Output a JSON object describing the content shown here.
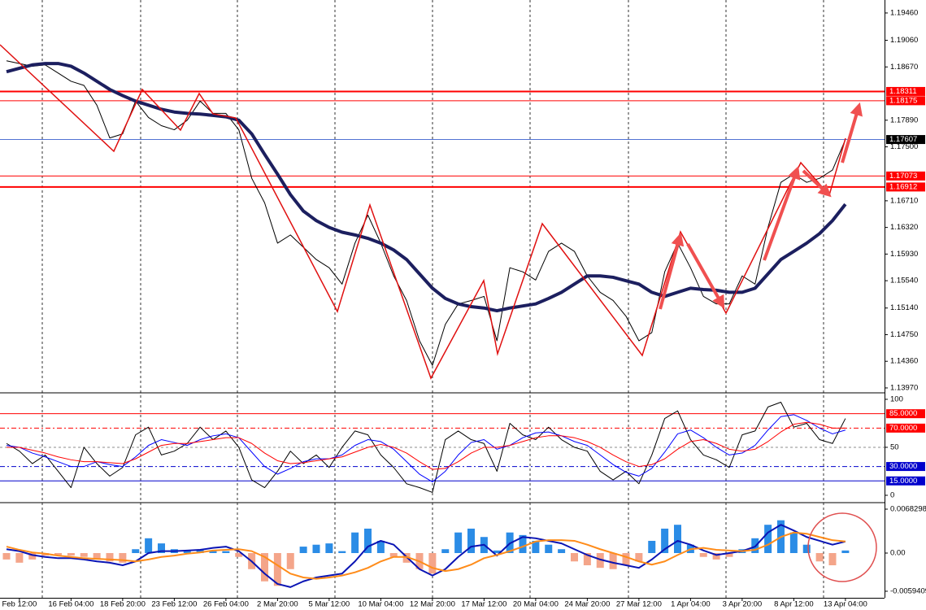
{
  "chart_data": [
    {
      "type": "line",
      "ylim": [
        1.1391,
        1.1965
      ],
      "yticks": [
        {
          "value": 1.1946,
          "label": "1.19460"
        },
        {
          "value": 1.1906,
          "label": "1.19060"
        },
        {
          "value": 1.1867,
          "label": "1.18670"
        },
        {
          "value": 1.1789,
          "label": "1.17890"
        },
        {
          "value": 1.175,
          "label": "1.17500"
        },
        {
          "value": 1.1671,
          "label": "1.16710"
        },
        {
          "value": 1.1632,
          "label": "1.16320"
        },
        {
          "value": 1.1593,
          "label": "1.15930"
        },
        {
          "value": 1.1554,
          "label": "1.15540"
        },
        {
          "value": 1.1514,
          "label": "1.15140"
        },
        {
          "value": 1.1475,
          "label": "1.14750"
        },
        {
          "value": 1.1436,
          "label": "1.14360"
        },
        {
          "value": 1.1397,
          "label": "1.13970"
        }
      ],
      "levels": [
        {
          "value": 1.18311,
          "color": "#ff0000",
          "width": 2,
          "tag": true
        },
        {
          "value": 1.18175,
          "color": "#ff0000",
          "width": 1,
          "tag": true
        },
        {
          "value": 1.17073,
          "color": "#ff0000",
          "width": 1,
          "tag": true
        },
        {
          "value": 1.16912,
          "color": "#ff0000",
          "width": 2,
          "tag": true
        }
      ],
      "current": {
        "value": 1.17607,
        "color": "#3a5fcd",
        "label_color": "#000000"
      },
      "series": [
        {
          "color": "#000000",
          "width": 1,
          "values": [
            1.1876,
            1.1872,
            1.1868,
            1.187,
            1.1858,
            1.1846,
            1.184,
            1.1811,
            1.1763,
            1.1769,
            1.1817,
            1.1793,
            1.1781,
            1.1775,
            1.1789,
            1.1817,
            1.1799,
            1.1799,
            1.1775,
            1.1704,
            1.1668,
            1.1609,
            1.1621,
            1.1603,
            1.1585,
            1.1573,
            1.1549,
            1.1609,
            1.165,
            1.1609,
            1.1561,
            1.1525,
            1.1466,
            1.143,
            1.149,
            1.152,
            1.1525,
            1.1531,
            1.1466,
            1.1573,
            1.1567,
            1.1555,
            1.1597,
            1.1609,
            1.1597,
            1.1561,
            1.1537,
            1.1525,
            1.1502,
            1.1466,
            1.1478,
            1.1567,
            1.1609,
            1.1573,
            1.1531,
            1.152,
            1.152,
            1.1561,
            1.1549,
            1.1632,
            1.1698,
            1.171,
            1.1698,
            1.1704,
            1.1716,
            1.17607
          ]
        },
        {
          "color": "#1c1f5f",
          "width": 4,
          "values": [
            1.186,
            1.1865,
            1.187,
            1.1872,
            1.1872,
            1.1868,
            1.1858,
            1.1846,
            1.1834,
            1.1825,
            1.1817,
            1.1811,
            1.1805,
            1.1801,
            1.1799,
            1.1798,
            1.1796,
            1.1794,
            1.1789,
            1.1769,
            1.1739,
            1.171,
            1.168,
            1.1656,
            1.1642,
            1.1632,
            1.1625,
            1.1621,
            1.1616,
            1.1609,
            1.1599,
            1.1585,
            1.1564,
            1.1543,
            1.1528,
            1.152,
            1.1516,
            1.1514,
            1.151,
            1.1514,
            1.1517,
            1.152,
            1.1528,
            1.1537,
            1.1549,
            1.1561,
            1.1561,
            1.1559,
            1.1554,
            1.1549,
            1.1537,
            1.1531,
            1.1537,
            1.1543,
            1.1541,
            1.154,
            1.1537,
            1.1537,
            1.1543,
            1.1564,
            1.1585,
            1.1597,
            1.1609,
            1.1623,
            1.1642,
            1.1666
          ]
        }
      ]
    },
    {
      "type": "line",
      "ylim": [
        -6.8,
        105.9
      ],
      "yticks": [
        100,
        50,
        0
      ],
      "levels": [
        {
          "value": 85,
          "label": "85.0000",
          "color": "#ff0000",
          "width": 1
        },
        {
          "value": 70,
          "label": "70.0000",
          "color": "#ff0000",
          "width": 1,
          "dash": "6 3 2 3"
        },
        {
          "value": 50,
          "color": "#8c8c8c",
          "width": 1,
          "dash": "3 3",
          "tag": false
        },
        {
          "value": 30,
          "label": "30.0000",
          "color": "#0000cc",
          "width": 1,
          "dash": "6 3 2 3"
        },
        {
          "value": 15,
          "label": "15.0000",
          "color": "#0000cc",
          "width": 1
        }
      ],
      "series": [
        {
          "color": "#000000",
          "width": 1,
          "values": [
            54,
            46,
            33,
            42,
            25,
            8,
            50,
            33,
            20,
            29,
            63,
            71,
            42,
            46,
            54,
            71,
            58,
            67,
            50,
            16,
            8,
            25,
            46,
            33,
            42,
            29,
            50,
            67,
            63,
            42,
            29,
            12,
            8,
            3,
            58,
            67,
            58,
            54,
            25,
            75,
            63,
            58,
            71,
            58,
            50,
            46,
            25,
            16,
            25,
            12,
            42,
            80,
            88,
            58,
            42,
            37,
            29,
            63,
            67,
            92,
            97,
            71,
            75,
            58,
            54,
            80
          ]
        },
        {
          "color": "#0000ff",
          "width": 1,
          "values": [
            52,
            50,
            44,
            40,
            35,
            30,
            30,
            35,
            32,
            30,
            40,
            52,
            58,
            55,
            52,
            58,
            62,
            64,
            60,
            45,
            30,
            22,
            28,
            35,
            38,
            38,
            42,
            52,
            58,
            56,
            48,
            35,
            22,
            14,
            25,
            42,
            55,
            58,
            48,
            52,
            60,
            65,
            66,
            62,
            56,
            52,
            42,
            32,
            24,
            20,
            28,
            45,
            64,
            68,
            60,
            50,
            42,
            44,
            52,
            68,
            82,
            84,
            78,
            70,
            64,
            68
          ]
        },
        {
          "color": "#ff0000",
          "width": 1,
          "values": [
            50,
            50,
            47,
            44,
            40,
            37,
            35,
            35,
            34,
            33,
            38,
            45,
            52,
            54,
            54,
            56,
            58,
            60,
            60,
            54,
            44,
            36,
            33,
            34,
            36,
            38,
            40,
            45,
            50,
            53,
            50,
            44,
            35,
            27,
            28,
            35,
            44,
            50,
            50,
            52,
            56,
            60,
            62,
            62,
            60,
            56,
            50,
            42,
            35,
            30,
            32,
            38,
            48,
            56,
            58,
            54,
            48,
            46,
            48,
            56,
            66,
            74,
            76,
            74,
            70,
            70
          ]
        }
      ]
    },
    {
      "type": "line",
      "ylim": [
        -0.00696,
        0.00759
      ],
      "yticks": [
        0.0068298,
        {
          "value": 0,
          "label": "0.00"
        },
        -0.0059409
      ],
      "categories": [
        null,
        "Feb 12:00",
        null,
        null,
        null,
        "16 Feb 04:00",
        null,
        null,
        null,
        "18 Feb 20:00",
        null,
        null,
        null,
        "23 Feb 12:00",
        null,
        null,
        null,
        "26 Feb 04:00",
        null,
        null,
        null,
        "2 Mar 20:00",
        null,
        null,
        null,
        "5 Mar 12:00",
        null,
        null,
        null,
        "10 Mar 04:00",
        null,
        null,
        null,
        "12 Mar 20:00",
        null,
        null,
        null,
        "17 Mar 12:00",
        null,
        null,
        null,
        "20 Mar 04:00",
        null,
        null,
        null,
        "24 Mar 20:00",
        null,
        null,
        null,
        "27 Mar 12:00",
        null,
        null,
        null,
        "1 Apr 04:00",
        null,
        null,
        null,
        "3 Apr 20:00",
        null,
        null,
        null,
        "8 Apr 12:00",
        null,
        null,
        null,
        "13 Apr 04:00"
      ],
      "series": [
        {
          "type": "bar",
          "color": "#2b8ce6",
          "negative_color": "#f4a58a",
          "values": [
            -0.001,
            -0.0015,
            -0.001,
            -0.0004,
            -0.0003,
            -0.0004,
            -0.0006,
            -0.001,
            -0.0013,
            -0.0015,
            0.0006,
            0.0023,
            0.0015,
            0.0006,
            0.0004,
            0.0005,
            0.0003,
            0.0003,
            -0.0006,
            -0.0025,
            -0.0044,
            -0.0051,
            -0.0025,
            0.001,
            0.0013,
            0.0015,
            0.0003,
            0.0032,
            0.0038,
            0.0019,
            -0.0006,
            -0.0015,
            -0.0025,
            -0.0032,
            0.0006,
            0.0032,
            0.0038,
            0.0025,
            0.0004,
            0.0032,
            0.0028,
            0.0019,
            0.0013,
            0.0006,
            -0.0013,
            -0.0019,
            -0.0023,
            -0.0025,
            -0.0019,
            -0.0013,
            0.0019,
            0.0038,
            0.0044,
            0.0013,
            -0.0006,
            -0.001,
            -0.0006,
            0.0006,
            0.0023,
            0.0044,
            0.0051,
            0.0032,
            0.0013,
            -0.0013,
            -0.0019,
            0.0004
          ]
        },
        {
          "color": "#0a14b4",
          "width": 2,
          "values": [
            0.0006,
            0.0003,
            -0.0003,
            -0.0006,
            -0.0008,
            -0.0008,
            -0.001,
            -0.0013,
            -0.0015,
            -0.0019,
            -0.0013,
            0,
            0.0003,
            0.0003,
            0.0004,
            0.0005,
            0.0008,
            0.001,
            0.0003,
            -0.0013,
            -0.0032,
            -0.0048,
            -0.0053,
            -0.0044,
            -0.0038,
            -0.0035,
            -0.0032,
            -0.0013,
            0.001,
            0.0019,
            0.0013,
            -0.0006,
            -0.0025,
            -0.0035,
            -0.0025,
            -0.0006,
            0.001,
            0.0013,
            -0.0004,
            0.0015,
            0.0025,
            0.0023,
            0.0019,
            0.0015,
            0.0006,
            -0.0003,
            -0.001,
            -0.0015,
            -0.0019,
            -0.0023,
            -0.001,
            0.0006,
            0.0019,
            0.0013,
            0.0004,
            -0.0003,
            0,
            0.0003,
            0.001,
            0.0032,
            0.0044,
            0.0035,
            0.0025,
            0.0019,
            0.0013,
            0.0018
          ]
        },
        {
          "color": "#ff8c1a",
          "width": 2,
          "values": [
            0.001,
            0.0005,
            0.0001,
            -0.0001,
            -0.0004,
            -0.0006,
            -0.0008,
            -0.0009,
            -0.001,
            -0.0011,
            -0.0013,
            -0.001,
            -0.0006,
            -0.0004,
            -0.0001,
            0.0001,
            0.0004,
            0.0005,
            0.0006,
            0.0003,
            -0.0006,
            -0.0019,
            -0.0032,
            -0.0038,
            -0.004,
            -0.0038,
            -0.0035,
            -0.003,
            -0.0023,
            -0.0013,
            -0.0006,
            -0.0006,
            -0.0013,
            -0.0023,
            -0.0028,
            -0.0025,
            -0.0018,
            -0.0008,
            -0.0003,
            0.0003,
            0.001,
            0.0018,
            0.002,
            0.002,
            0.0019,
            0.0013,
            0.0006,
            0,
            -0.0006,
            -0.0013,
            -0.0018,
            -0.0013,
            -0.0003,
            0.0006,
            0.0008,
            0.0005,
            0.0004,
            0.0003,
            0.0005,
            0.0013,
            0.0025,
            0.0032,
            0.003,
            0.0025,
            0.002,
            0.0018
          ]
        }
      ]
    }
  ]
}
